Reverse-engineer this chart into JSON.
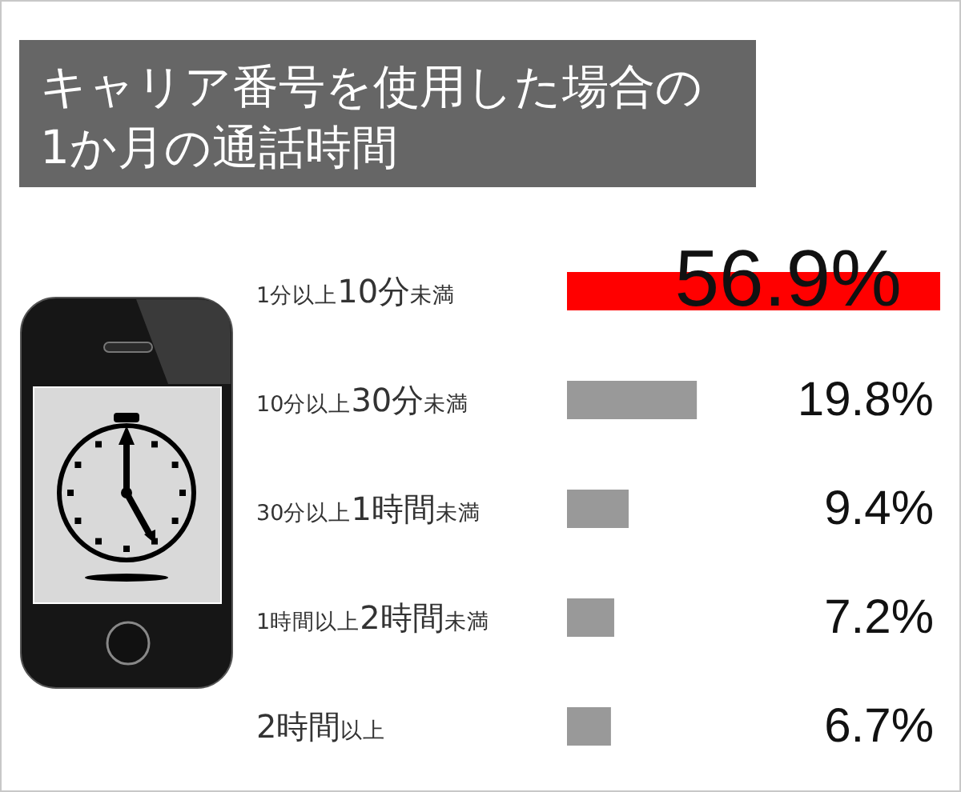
{
  "chart_data": {
    "type": "bar",
    "orientation": "horizontal",
    "title": "キャリア番号を使用した場合の1か月の通話時間",
    "categories": [
      "1分以上**10分**未満",
      "10分以上**30分**未満",
      "30分以上**1時間**未満",
      "1時間以上**2時間**未満",
      "**2時間**以上"
    ],
    "values": [
      56.9,
      19.8,
      9.4,
      7.2,
      6.7
    ],
    "colors": [
      "#ff0000",
      "#999999",
      "#999999",
      "#999999",
      "#999999"
    ],
    "value_labels": [
      "56.9%",
      "19.8%",
      "9.4%",
      "7.2%",
      "6.7%"
    ]
  }
}
